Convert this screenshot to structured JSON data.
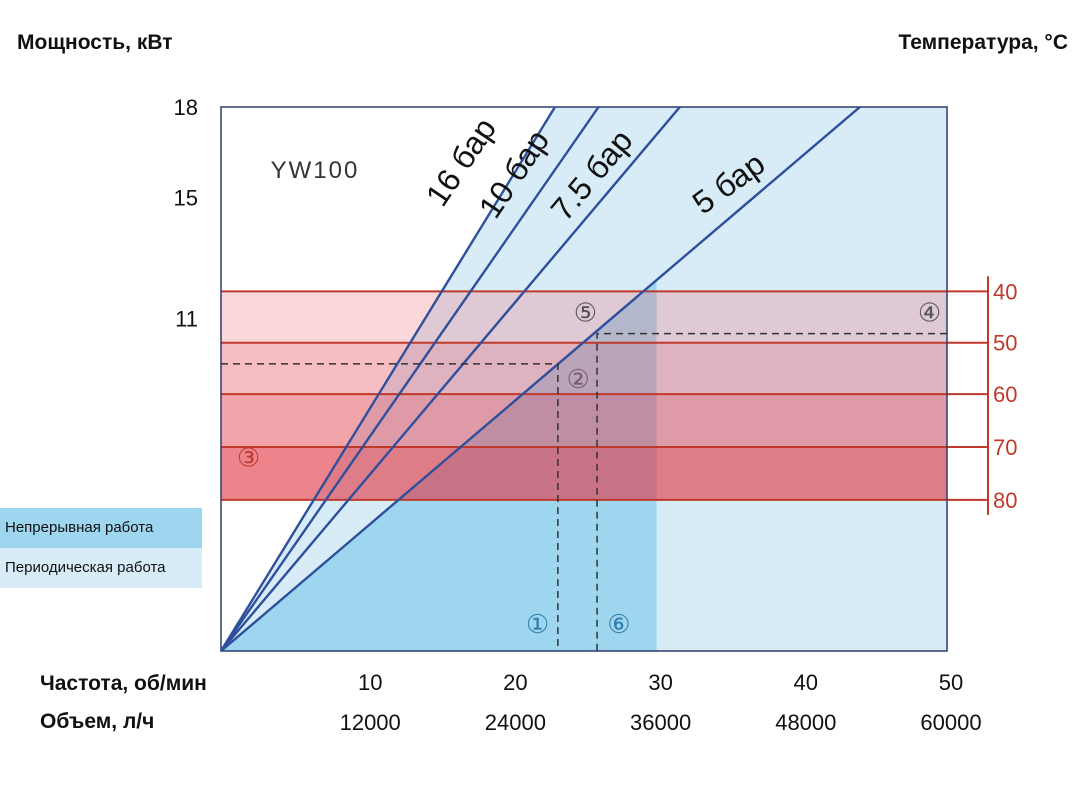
{
  "chart_data": {
    "type": "line",
    "model": "YW100",
    "ylabel_left": "Мощность, кВт",
    "ylabel_right": "Температура, °C",
    "xlabel_freq": "Частота, об/мин",
    "xlabel_volume": "Объем, л/ч",
    "x_freq_ticks": [
      "10",
      "20",
      "30",
      "40",
      "50"
    ],
    "x_volume_ticks": [
      "12000",
      "24000",
      "36000",
      "48000",
      "60000"
    ],
    "x_freq_values": [
      10,
      20,
      30,
      40,
      50
    ],
    "xlim": [
      0,
      50
    ],
    "y_power_ticks": [
      {
        "label": "18",
        "value": 18
      },
      {
        "label": "15",
        "value": 15
      },
      {
        "label": "11",
        "value": 11
      }
    ],
    "ylim": [
      0,
      18
    ],
    "temperature_ticks": [
      "40",
      "50",
      "60",
      "70",
      "80"
    ],
    "temperature_values": [
      40,
      50,
      60,
      70,
      80
    ],
    "temperature_power_levels": [
      11.9,
      10.2,
      8.5,
      6.75,
      5.0
    ],
    "series": [
      {
        "name": "16 бар",
        "x": [
          0,
          23.0
        ],
        "y": [
          0,
          18
        ]
      },
      {
        "name": "10 бар",
        "x": [
          0,
          26.0
        ],
        "y": [
          0,
          18
        ]
      },
      {
        "name": "7.5 бар",
        "x": [
          0,
          31.6
        ],
        "y": [
          0,
          18
        ]
      },
      {
        "name": "5 бар",
        "x": [
          0,
          44.0
        ],
        "y": [
          0,
          18
        ]
      }
    ],
    "regions": {
      "continuous_max_freq": 30,
      "intermittent_max_freq": 50
    },
    "markers": [
      {
        "label": "①",
        "x": 21.8,
        "y": 0.9,
        "color": "#2f7fae"
      },
      {
        "label": "②",
        "x": 24.6,
        "y": 9.0,
        "color": "#7a5a6a"
      },
      {
        "label": "③",
        "x": 1.9,
        "y": 6.4,
        "color": "#c0392b"
      },
      {
        "label": "④",
        "x": 48.8,
        "y": 11.2,
        "color": "#555"
      },
      {
        "label": "⑤",
        "x": 25.1,
        "y": 11.2,
        "color": "#555"
      },
      {
        "label": "⑥",
        "x": 27.4,
        "y": 0.9,
        "color": "#2f7fae"
      }
    ],
    "guides": [
      {
        "from": [
          0,
          9.5
        ],
        "to": [
          23.2,
          9.5
        ],
        "down_to": [
          23.2,
          0
        ]
      },
      {
        "from": [
          50,
          10.5
        ],
        "to": [
          25.9,
          10.5
        ],
        "down_to": [
          25.9,
          0
        ]
      }
    ],
    "legend": [
      {
        "label": "Непрерывная работа",
        "color": "#9ed5ef"
      },
      {
        "label": "Периодическая работа",
        "color": "#d8ecf8"
      }
    ]
  }
}
